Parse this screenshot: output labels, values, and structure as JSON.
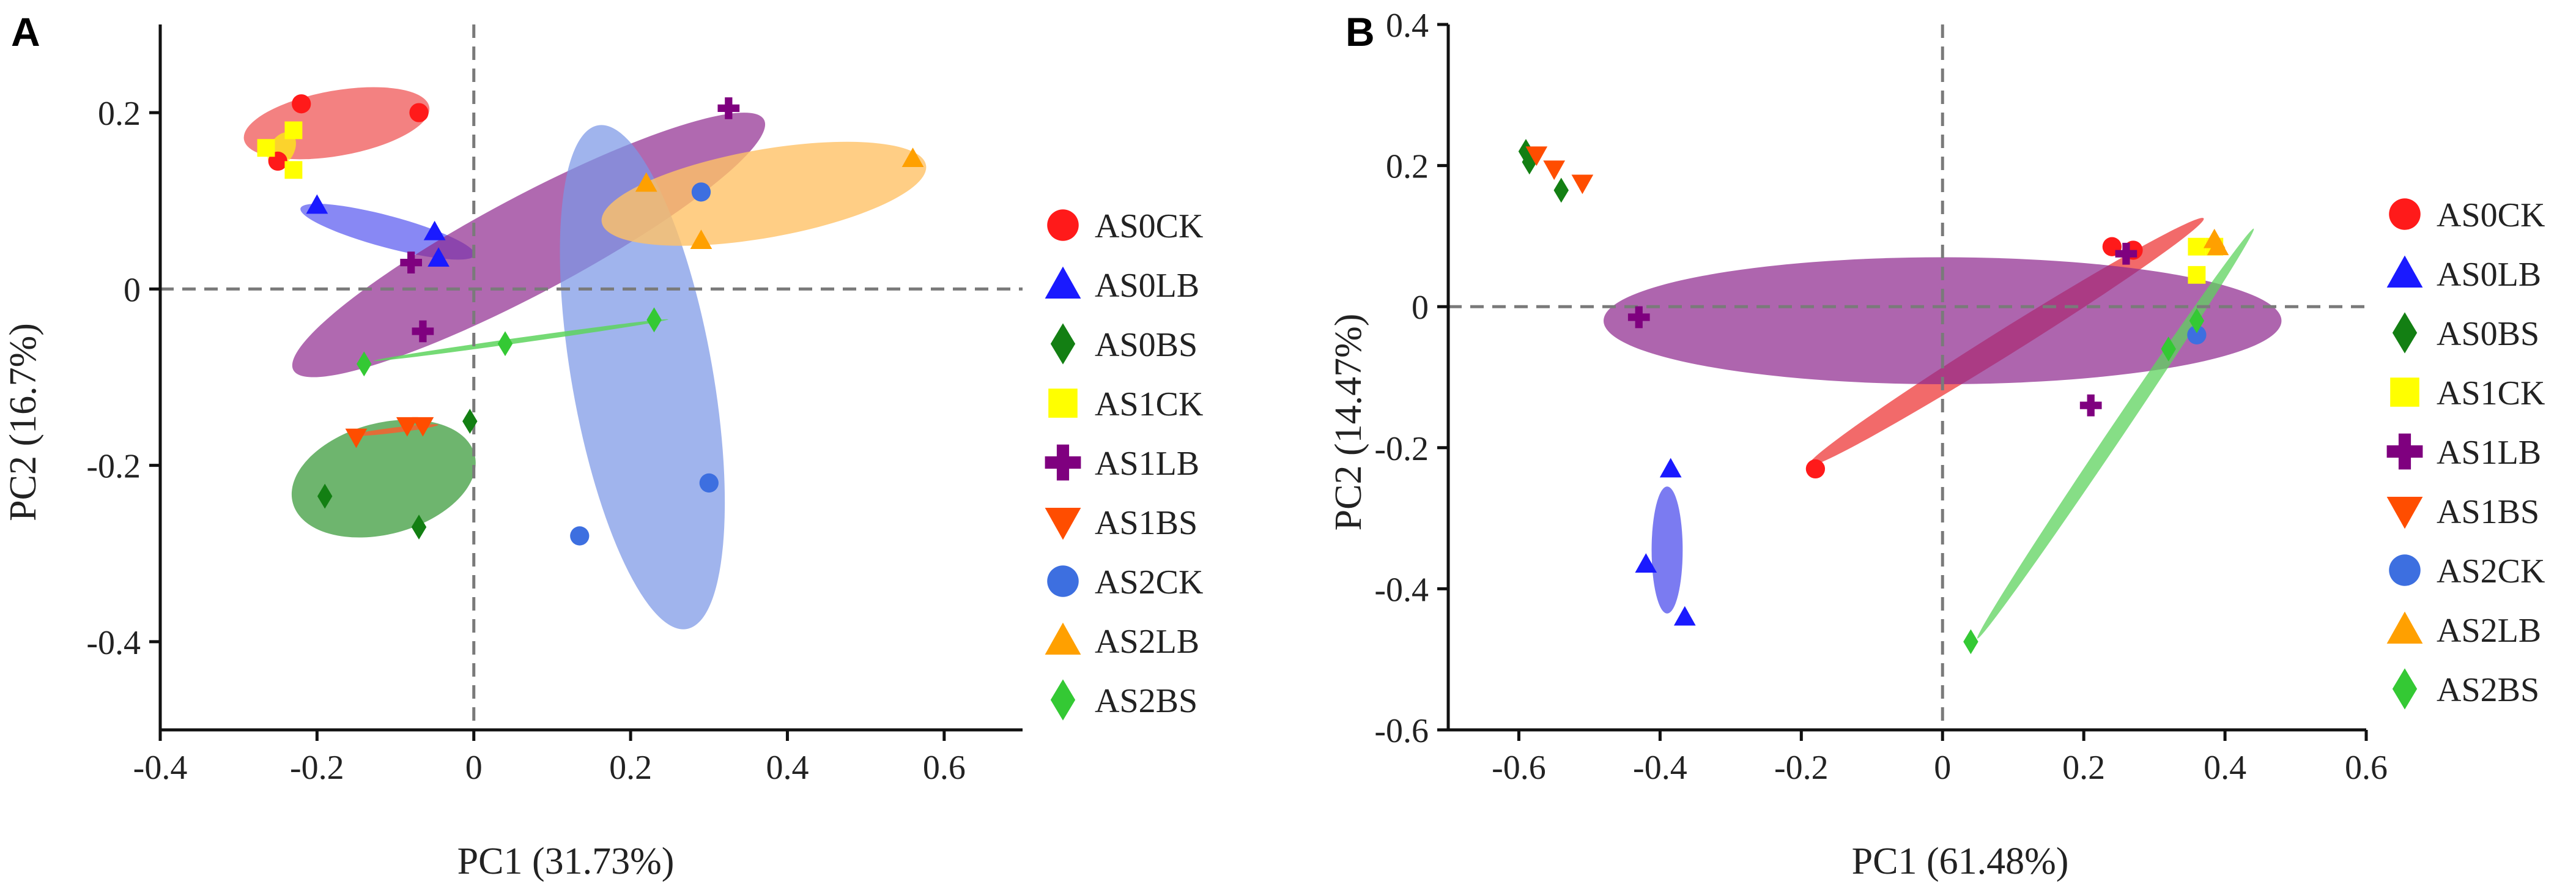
{
  "chart_data": [
    {
      "type": "scatter",
      "panel_label": "A",
      "xlabel": "PC1 (31.73%)",
      "ylabel": "PC2 (16.7%)",
      "xlim": [
        -0.4,
        0.7
      ],
      "ylim": [
        -0.5,
        0.3
      ],
      "xticks": [
        -0.4,
        -0.2,
        0,
        0.2,
        0.4,
        0.6
      ],
      "xtick_labels": [
        "-0.4",
        "-0.2",
        "0",
        "0.2",
        "0.4",
        "0.6"
      ],
      "yticks": [
        0.2,
        0,
        -0.2,
        -0.4
      ],
      "ytick_labels": [
        "0.2",
        "0",
        "-0.2",
        "-0.4"
      ],
      "reference_lines": {
        "x": 0,
        "y": 0
      },
      "legend_position": "right",
      "series": [
        {
          "name": "AS0CK",
          "color": "#ff1a1a",
          "marker": "circle",
          "points": [
            [
              -0.22,
              0.21
            ],
            [
              -0.25,
              0.145
            ],
            [
              -0.07,
              0.2
            ]
          ],
          "ellipse": {
            "cx": -0.175,
            "cy": 0.188,
            "rx": 0.12,
            "ry": 0.037,
            "angle": 10,
            "color": "#f06262",
            "opacity": 0.8
          }
        },
        {
          "name": "AS0LB",
          "color": "#1a1aff",
          "marker": "triangle",
          "points": [
            [
              -0.2,
              0.095
            ],
            [
              -0.05,
              0.065
            ],
            [
              -0.045,
              0.035
            ]
          ],
          "ellipse": {
            "cx": -0.11,
            "cy": 0.065,
            "rx": 0.115,
            "ry": 0.018,
            "angle": -15,
            "color": "#4848ee",
            "opacity": 0.65
          }
        },
        {
          "name": "AS0BS",
          "color": "#137f13",
          "marker": "diamond",
          "points": [
            [
              -0.19,
              -0.235
            ],
            [
              -0.07,
              -0.27
            ],
            [
              -0.005,
              -0.15
            ]
          ],
          "ellipse": {
            "cx": -0.115,
            "cy": -0.215,
            "rx": 0.12,
            "ry": 0.063,
            "angle": 15,
            "color": "#3d9c3d",
            "opacity": 0.75
          }
        },
        {
          "name": "AS1CK",
          "color": "#ffff00",
          "marker": "square",
          "points": [
            [
              -0.265,
              0.16
            ],
            [
              -0.23,
              0.18
            ],
            [
              -0.23,
              0.135
            ]
          ],
          "ellipse": {
            "cx": -0.245,
            "cy": 0.158,
            "rx": 0.024,
            "ry": 0.014,
            "angle": 60,
            "color": "#ffff00",
            "opacity": 0.65
          }
        },
        {
          "name": "AS1LB",
          "color": "#7f007f",
          "marker": "plus",
          "points": [
            [
              0.325,
              0.205
            ],
            [
              -0.08,
              0.03
            ],
            [
              -0.065,
              -0.048
            ]
          ],
          "ellipse": {
            "cx": 0.07,
            "cy": 0.05,
            "rx": 0.34,
            "ry": 0.055,
            "angle": 28,
            "color": "#8f2a8f",
            "opacity": 0.7
          }
        },
        {
          "name": "AS1BS",
          "color": "#ff4d00",
          "marker": "triangle-down",
          "points": [
            [
              -0.15,
              -0.168
            ],
            [
              -0.085,
              -0.155
            ],
            [
              -0.065,
              -0.155
            ]
          ],
          "ellipse": {
            "cx": -0.1,
            "cy": -0.16,
            "rx": 0.055,
            "ry": 0.003,
            "angle": 7,
            "color": "#ff5a2a",
            "opacity": 0.8
          }
        },
        {
          "name": "AS2CK",
          "color": "#3d6fe0",
          "marker": "circle",
          "points": [
            [
              0.29,
              0.11
            ],
            [
              0.3,
              -0.22
            ],
            [
              0.135,
              -0.28
            ]
          ],
          "ellipse": {
            "cx": 0.215,
            "cy": -0.1,
            "rx": 0.09,
            "ry": 0.29,
            "angle": 10,
            "color": "#7c97e6",
            "opacity": 0.72
          }
        },
        {
          "name": "AS2LB",
          "color": "#ffa000",
          "marker": "triangle",
          "points": [
            [
              0.22,
              0.12
            ],
            [
              0.29,
              0.055
            ],
            [
              0.56,
              0.148
            ]
          ],
          "ellipse": {
            "cx": 0.37,
            "cy": 0.108,
            "rx": 0.21,
            "ry": 0.05,
            "angle": 10,
            "color": "#ffc266",
            "opacity": 0.8
          }
        },
        {
          "name": "AS2BS",
          "color": "#34c934",
          "marker": "diamond",
          "points": [
            [
              -0.14,
              -0.085
            ],
            [
              0.04,
              -0.062
            ],
            [
              0.23,
              -0.035
            ]
          ],
          "ellipse": {
            "cx": 0.06,
            "cy": -0.058,
            "rx": 0.19,
            "ry": 0.003,
            "angle": 8,
            "color": "#5dd35d",
            "opacity": 0.85
          }
        }
      ]
    },
    {
      "type": "scatter",
      "panel_label": "B",
      "xlabel": "PC1 (61.48%)",
      "ylabel": "PC2 (14.47%)",
      "xlim": [
        -0.7,
        0.6
      ],
      "ylim": [
        -0.6,
        0.4
      ],
      "xticks": [
        -0.6,
        -0.4,
        -0.2,
        0,
        0.2,
        0.4,
        0.6
      ],
      "xtick_labels": [
        "-0.6",
        "-0.4",
        "-0.2",
        "0",
        "0.2",
        "0.4",
        "0.6"
      ],
      "yticks": [
        0.4,
        0.2,
        0,
        -0.2,
        -0.4,
        -0.6
      ],
      "ytick_labels": [
        "0.4",
        "0.2",
        "0",
        "-0.2",
        "-0.4",
        "-0.6"
      ],
      "reference_lines": {
        "x": 0,
        "y": 0
      },
      "legend_position": "right",
      "series": [
        {
          "name": "AS0CK",
          "color": "#ff1a1a",
          "marker": "circle",
          "points": [
            [
              0.24,
              0.085
            ],
            [
              0.27,
              0.08
            ],
            [
              -0.18,
              -0.23
            ]
          ],
          "ellipse": {
            "cx": 0.09,
            "cy": -0.05,
            "rx": 0.33,
            "ry": 0.018,
            "angle": 32,
            "color": "#f05050",
            "opacity": 0.85
          }
        },
        {
          "name": "AS0LB",
          "color": "#1a1aff",
          "marker": "triangle",
          "points": [
            [
              -0.385,
              -0.23
            ],
            [
              -0.42,
              -0.365
            ],
            [
              -0.365,
              -0.44
            ]
          ],
          "ellipse": {
            "cx": -0.39,
            "cy": -0.345,
            "rx": 0.022,
            "ry": 0.09,
            "angle": 0,
            "color": "#5a5aee",
            "opacity": 0.8
          }
        },
        {
          "name": "AS0BS",
          "color": "#137f13",
          "marker": "diamond",
          "points": [
            [
              -0.59,
              0.22
            ],
            [
              -0.585,
              0.205
            ],
            [
              -0.54,
              0.165
            ]
          ],
          "ellipse": null
        },
        {
          "name": "AS1CK",
          "color": "#ffff00",
          "marker": "square",
          "points": [
            [
              0.36,
              0.085
            ],
            [
              0.36,
              0.045
            ],
            [
              0.385,
              0.085
            ]
          ],
          "ellipse": null
        },
        {
          "name": "AS1LB",
          "color": "#7f007f",
          "marker": "plus",
          "points": [
            [
              -0.43,
              -0.015
            ],
            [
              0.21,
              -0.14
            ],
            [
              0.26,
              0.075
            ]
          ],
          "ellipse": {
            "cx": 0.0,
            "cy": -0.02,
            "rx": 0.48,
            "ry": 0.09,
            "angle": 0,
            "color": "#8f2a8f",
            "opacity": 0.72
          }
        },
        {
          "name": "AS1BS",
          "color": "#ff4d00",
          "marker": "triangle-down",
          "points": [
            [
              -0.575,
              0.215
            ],
            [
              -0.55,
              0.195
            ],
            [
              -0.51,
              0.175
            ]
          ],
          "ellipse": null
        },
        {
          "name": "AS2CK",
          "color": "#3d6fe0",
          "marker": "circle",
          "points": [
            [
              0.36,
              -0.04
            ]
          ],
          "ellipse": null
        },
        {
          "name": "AS2LB",
          "color": "#ffa000",
          "marker": "triangle",
          "points": [
            [
              0.385,
              0.095
            ],
            [
              0.39,
              0.085
            ]
          ],
          "ellipse": null
        },
        {
          "name": "AS2BS",
          "color": "#34c934",
          "marker": "diamond",
          "points": [
            [
              0.04,
              -0.475
            ],
            [
              0.32,
              -0.06
            ],
            [
              0.36,
              -0.02
            ]
          ],
          "ellipse": {
            "cx": 0.245,
            "cy": -0.18,
            "rx": 0.35,
            "ry": 0.01,
            "angle": 56,
            "color": "#5dd35d",
            "opacity": 0.75
          }
        }
      ]
    }
  ]
}
